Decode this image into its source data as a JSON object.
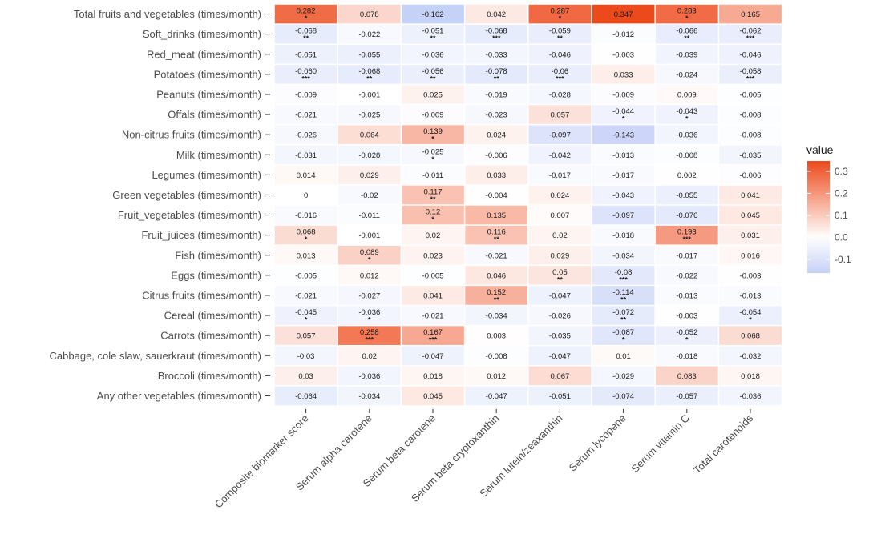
{
  "chart_data": {
    "type": "heatmap",
    "rows": [
      "Total fruits and vegetables (times/month)",
      "Soft_drinks (times/month)",
      "Red_meat (times/month)",
      "Potatoes (times/month)",
      "Peanuts (times/month)",
      "Offals (times/month)",
      "Non-citrus fruits (times/month)",
      "Milk (times/month)",
      "Legumes (times/month)",
      "Green vegetables (times/month)",
      "Fruit_vegetables (times/month)",
      "Fruit_juices (times/month)",
      "Fish (times/month)",
      "Eggs (times/month)",
      "Citrus fruits (times/month)",
      "Cereal (times/month)",
      "Carrots (times/month)",
      "Cabbage, cole slaw, sauerkraut (times/month)",
      "Broccoli (times/month)",
      "Any other vegetables (times/month)"
    ],
    "columns": [
      "Composite biomarker score",
      "Serum alpha carotene",
      "Serum beta carotene",
      "Serum beta cryptoxanthin",
      "Serum lutein/zeaxanthin",
      "Serum lycopene",
      "Serum vitamin C",
      "Total carotenoids"
    ],
    "values": [
      [
        0.282,
        0.078,
        -0.162,
        0.042,
        0.287,
        0.347,
        0.283,
        0.165
      ],
      [
        -0.068,
        -0.022,
        -0.051,
        -0.068,
        -0.059,
        -0.012,
        -0.066,
        -0.062
      ],
      [
        -0.051,
        -0.055,
        -0.036,
        -0.033,
        -0.046,
        -0.003,
        -0.039,
        -0.046
      ],
      [
        -0.06,
        -0.068,
        -0.056,
        -0.078,
        -0.06,
        0.033,
        -0.024,
        -0.058
      ],
      [
        -0.009,
        -0.001,
        0.025,
        -0.019,
        -0.028,
        -0.009,
        0.009,
        -0.005
      ],
      [
        -0.021,
        -0.025,
        -0.009,
        -0.023,
        0.057,
        -0.044,
        -0.043,
        -0.008
      ],
      [
        -0.026,
        0.064,
        0.139,
        0.024,
        -0.097,
        -0.143,
        -0.036,
        -0.008
      ],
      [
        -0.031,
        -0.028,
        -0.025,
        -0.006,
        -0.042,
        -0.013,
        -0.008,
        -0.035
      ],
      [
        0.014,
        0.029,
        -0.011,
        0.033,
        -0.017,
        -0.017,
        0.002,
        -0.006
      ],
      [
        0,
        -0.02,
        0.117,
        -0.004,
        0.024,
        -0.043,
        -0.055,
        0.041
      ],
      [
        -0.016,
        -0.011,
        0.12,
        0.135,
        0.007,
        -0.097,
        -0.076,
        0.045
      ],
      [
        0.068,
        -0.001,
        0.02,
        0.116,
        0.02,
        -0.018,
        0.193,
        0.031
      ],
      [
        0.013,
        0.089,
        0.023,
        -0.021,
        0.029,
        -0.034,
        -0.017,
        0.016
      ],
      [
        -0.005,
        0.012,
        -0.005,
        0.046,
        0.05,
        -0.08,
        -0.022,
        -0.003
      ],
      [
        -0.021,
        -0.027,
        0.041,
        0.152,
        -0.047,
        -0.114,
        -0.013,
        -0.013
      ],
      [
        -0.045,
        -0.036,
        -0.021,
        -0.034,
        -0.026,
        -0.072,
        -0.003,
        -0.054
      ],
      [
        0.057,
        0.258,
        0.167,
        0.003,
        -0.035,
        -0.087,
        -0.052,
        0.068
      ],
      [
        -0.03,
        0.02,
        -0.047,
        -0.008,
        -0.047,
        0.01,
        -0.018,
        -0.032
      ],
      [
        0.03,
        -0.036,
        0.018,
        0.012,
        0.067,
        -0.029,
        0.083,
        0.018
      ],
      [
        -0.064,
        -0.034,
        0.045,
        -0.047,
        -0.051,
        -0.074,
        -0.057,
        -0.036
      ]
    ],
    "labels": [
      [
        "0.282",
        "0.078",
        "-0.162",
        "0.042",
        "0.287",
        "0.347",
        "0.283",
        "0.165"
      ],
      [
        "-0.068",
        "-0.022",
        "-0.051",
        "-0.068",
        "-0.059",
        "-0.012",
        "-0.066",
        "-0.062"
      ],
      [
        "-0.051",
        "-0.055",
        "-0.036",
        "-0.033",
        "-0.046",
        "-0.003",
        "-0.039",
        "-0.046"
      ],
      [
        "-0.060",
        "-0.068",
        "-0.056",
        "-0.078",
        "-0.06",
        "0.033",
        "-0.024",
        "-0.058"
      ],
      [
        "-0.009",
        "-0.001",
        "0.025",
        "-0.019",
        "-0.028",
        "-0.009",
        "0.009",
        "-0.005"
      ],
      [
        "-0.021",
        "-0.025",
        "-0.009",
        "-0.023",
        "0.057",
        "-0.044",
        "-0.043",
        "-0.008"
      ],
      [
        "-0.026",
        "0.064",
        "0.139",
        "0.024",
        "-0.097",
        "-0.143",
        "-0.036",
        "-0.008"
      ],
      [
        "-0.031",
        "-0.028",
        "-0.025",
        "-0.006",
        "-0.042",
        "-0.013",
        "-0.008",
        "-0.035"
      ],
      [
        "0.014",
        "0.029",
        "-0.011",
        "0.033",
        "-0.017",
        "-0.017",
        "0.002",
        "-0.006"
      ],
      [
        "0",
        "-0.02",
        "0.117",
        "-0.004",
        "0.024",
        "-0.043",
        "-0.055",
        "0.041"
      ],
      [
        "-0.016",
        "-0.011",
        "0.12",
        "0.135",
        "0.007",
        "-0.097",
        "-0.076",
        "0.045"
      ],
      [
        "0.068",
        "-0.001",
        "0.02",
        "0.116",
        "0.02",
        "-0.018",
        "0.193",
        "0.031"
      ],
      [
        "0.013",
        "0.089",
        "0.023",
        "-0.021",
        "0.029",
        "-0.034",
        "-0.017",
        "0.016"
      ],
      [
        "-0.005",
        "0.012",
        "-0.005",
        "0.046",
        "0.05",
        "-0.08",
        "-0.022",
        "-0.003"
      ],
      [
        "-0.021",
        "-0.027",
        "0.041",
        "0.152",
        "-0.047",
        "-0.114",
        "-0.013",
        "-0.013"
      ],
      [
        "-0.045",
        "-0.036",
        "-0.021",
        "-0.034",
        "-0.026",
        "-0.072",
        "-0.003",
        "-0.054"
      ],
      [
        "0.057",
        "0.258",
        "0.167",
        "0.003",
        "-0.035",
        "-0.087",
        "-0.052",
        "0.068"
      ],
      [
        "-0.03",
        "0.02",
        "-0.047",
        "-0.008",
        "-0.047",
        "0.01",
        "-0.018",
        "-0.032"
      ],
      [
        "0.03",
        "-0.036",
        "0.018",
        "0.012",
        "0.067",
        "-0.029",
        "0.083",
        "0.018"
      ],
      [
        "-0.064",
        "-0.034",
        "0.045",
        "-0.047",
        "-0.051",
        "-0.074",
        "-0.057",
        "-0.036"
      ]
    ],
    "significance": [
      [
        "*",
        "",
        "",
        "",
        "*",
        "",
        "*",
        ""
      ],
      [
        "**",
        "",
        "**",
        "***",
        "**",
        "",
        "**",
        "***"
      ],
      [
        "",
        "",
        "",
        "",
        "",
        "",
        "",
        ""
      ],
      [
        "***",
        "**",
        "**",
        "**",
        "***",
        "",
        "",
        "***"
      ],
      [
        "",
        "",
        "",
        "",
        "",
        "",
        "",
        ""
      ],
      [
        "",
        "",
        "",
        "",
        "",
        "*",
        "*",
        ""
      ],
      [
        "",
        "",
        "*",
        "",
        "",
        "",
        "",
        ""
      ],
      [
        "",
        "",
        "*",
        "",
        "",
        "",
        "",
        ""
      ],
      [
        "",
        "",
        "",
        "",
        "",
        "",
        "",
        ""
      ],
      [
        "",
        "",
        "**",
        "",
        "",
        "",
        "",
        ""
      ],
      [
        "",
        "",
        "*",
        "",
        "",
        "",
        "",
        ""
      ],
      [
        "*",
        "",
        "",
        "**",
        "",
        "",
        "***",
        ""
      ],
      [
        "",
        "*",
        "",
        "",
        "",
        "",
        "",
        ""
      ],
      [
        "",
        "",
        "",
        "",
        "**",
        "***",
        "",
        ""
      ],
      [
        "",
        "",
        "",
        "**",
        "",
        "**",
        "",
        ""
      ],
      [
        "*",
        "*",
        "",
        "",
        "",
        "**",
        "",
        "*"
      ],
      [
        "",
        "***",
        "***",
        "",
        "",
        "*",
        "*",
        ""
      ],
      [
        "",
        "",
        "",
        "",
        "",
        "",
        "",
        ""
      ],
      [
        "",
        "",
        "",
        "",
        "",
        "",
        "",
        ""
      ],
      [
        "",
        "",
        "",
        "",
        "",
        "",
        "",
        ""
      ]
    ],
    "legend": {
      "title": "value",
      "ticks": [
        0.3,
        0.2,
        0.1,
        0.0,
        -0.1
      ],
      "tick_labels": [
        "0.3",
        "0.2",
        "0.1",
        "0.0",
        "-0.1"
      ],
      "range": [
        -0.162,
        0.347
      ],
      "placement": "right"
    },
    "colors": {
      "low": "#c6d1f7",
      "mid": "#ffffff",
      "high": "#ed4a1c"
    }
  }
}
